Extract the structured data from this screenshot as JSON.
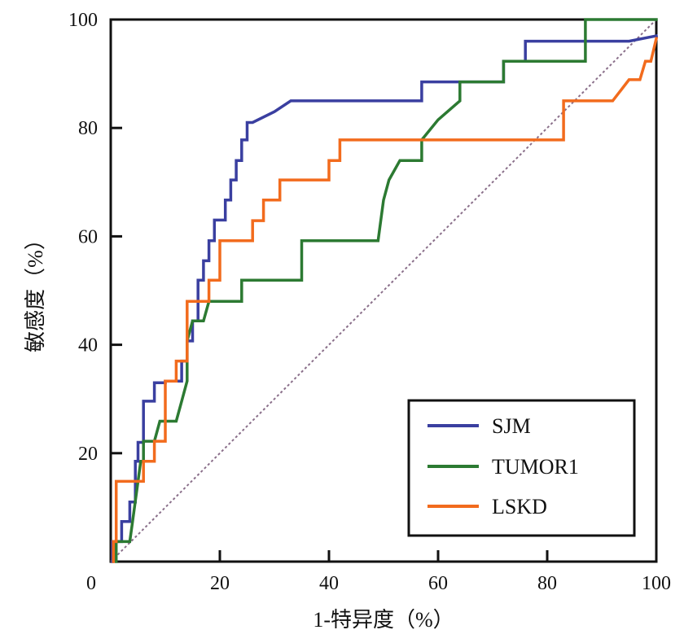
{
  "chart_data": {
    "type": "line",
    "subtype": "roc",
    "title": "",
    "xlabel": "1-特异度（%）",
    "ylabel": "敏感度（%）",
    "xlim": [
      0,
      100
    ],
    "ylim": [
      0,
      100
    ],
    "xticks": [
      0,
      20,
      40,
      60,
      80,
      100
    ],
    "yticks": [
      20,
      40,
      60,
      80,
      100
    ],
    "xtick_labels": [
      "0",
      "20",
      "40",
      "60",
      "80",
      "100"
    ],
    "ytick_labels": [
      "20",
      "40",
      "60",
      "80",
      "100"
    ],
    "grid": false,
    "legend_position": "bottom-right",
    "reference_line": {
      "name": "diagonal",
      "x": [
        0,
        100
      ],
      "y": [
        0,
        100
      ],
      "color": "#8a6f8a",
      "style": "dashed"
    },
    "series": [
      {
        "name": "SJM",
        "color": "#3a3fa0",
        "x": [
          0.3,
          0.3,
          2,
          2,
          3.5,
          3.5,
          4.5,
          4.5,
          5,
          5,
          6,
          6,
          8,
          8,
          10,
          10,
          13,
          13,
          14,
          14,
          15,
          15,
          16,
          16,
          17,
          17,
          18,
          18,
          19,
          19,
          21,
          21,
          22,
          22,
          23,
          23,
          24,
          24,
          25,
          25,
          26,
          26,
          30,
          33,
          35,
          40,
          50,
          57,
          57,
          60,
          65,
          70,
          72,
          72,
          76,
          76,
          80,
          85,
          90,
          95,
          100
        ],
        "y": [
          0,
          3.7,
          3.7,
          7.4,
          7.4,
          11,
          11,
          18.5,
          18.5,
          22,
          22,
          29.6,
          29.6,
          33,
          33,
          33.3,
          33.3,
          37,
          37,
          40.7,
          40.7,
          44.4,
          44.4,
          51.9,
          51.9,
          55.5,
          55.5,
          59.2,
          59.2,
          63,
          63,
          66.7,
          66.7,
          70.4,
          70.4,
          74,
          74,
          77.8,
          77.8,
          81,
          81,
          81,
          83,
          85,
          85,
          85,
          85,
          85,
          88.5,
          88.5,
          88.5,
          88.5,
          88.5,
          92.3,
          92.3,
          96,
          96,
          96,
          96,
          96,
          97
        ]
      },
      {
        "name": "TUMOR1",
        "color": "#2c7a32",
        "x": [
          1,
          1,
          2.5,
          3.5,
          4,
          5,
          5.5,
          6,
          6,
          8,
          9,
          12,
          13,
          14,
          14,
          15,
          17,
          18,
          18,
          24,
          24,
          35,
          35,
          42,
          49,
          50,
          51,
          53,
          57,
          57,
          60,
          64,
          64,
          68,
          70,
          72,
          72,
          75,
          80,
          85,
          87,
          87,
          90,
          95,
          100
        ],
        "y": [
          0,
          3.7,
          3.7,
          3.7,
          7.4,
          14.8,
          18.5,
          18.5,
          22.2,
          22.2,
          25.9,
          25.9,
          29.6,
          33.3,
          40.7,
          44.4,
          44.4,
          48,
          48,
          48,
          51.9,
          51.9,
          59.2,
          59.2,
          59.2,
          66.7,
          70.4,
          74,
          74,
          77.8,
          81.5,
          85,
          88.5,
          88.5,
          88.5,
          88.5,
          92.3,
          92.3,
          92.3,
          92.3,
          92.3,
          100,
          100,
          100,
          100
        ]
      },
      {
        "name": "LSKD",
        "color": "#f26b1d",
        "x": [
          0.5,
          0.5,
          1,
          1,
          2,
          2,
          6,
          6,
          8,
          8,
          10,
          10,
          12,
          12,
          14,
          14,
          18,
          18,
          20,
          20,
          22,
          22,
          26,
          26,
          28,
          28,
          31,
          31,
          33,
          33,
          40,
          40,
          42,
          42,
          44,
          44,
          46,
          50,
          60,
          70,
          80,
          83,
          83,
          86,
          89,
          92,
          95,
          96,
          97,
          98,
          99,
          100
        ],
        "y": [
          0,
          3.7,
          3.7,
          14.8,
          14.8,
          14.8,
          14.8,
          18.5,
          18.5,
          22.2,
          22.2,
          33.3,
          33.3,
          37,
          37,
          48,
          48,
          51.9,
          51.9,
          59.2,
          59.2,
          59.2,
          59.2,
          62.9,
          62.9,
          66.7,
          66.7,
          70.4,
          70.4,
          70.4,
          70.4,
          74,
          74,
          77.8,
          77.8,
          77.8,
          77.8,
          77.8,
          77.8,
          77.8,
          77.8,
          77.8,
          85,
          85,
          85,
          85,
          88.9,
          88.9,
          88.9,
          92.3,
          92.3,
          96.5
        ]
      }
    ]
  }
}
